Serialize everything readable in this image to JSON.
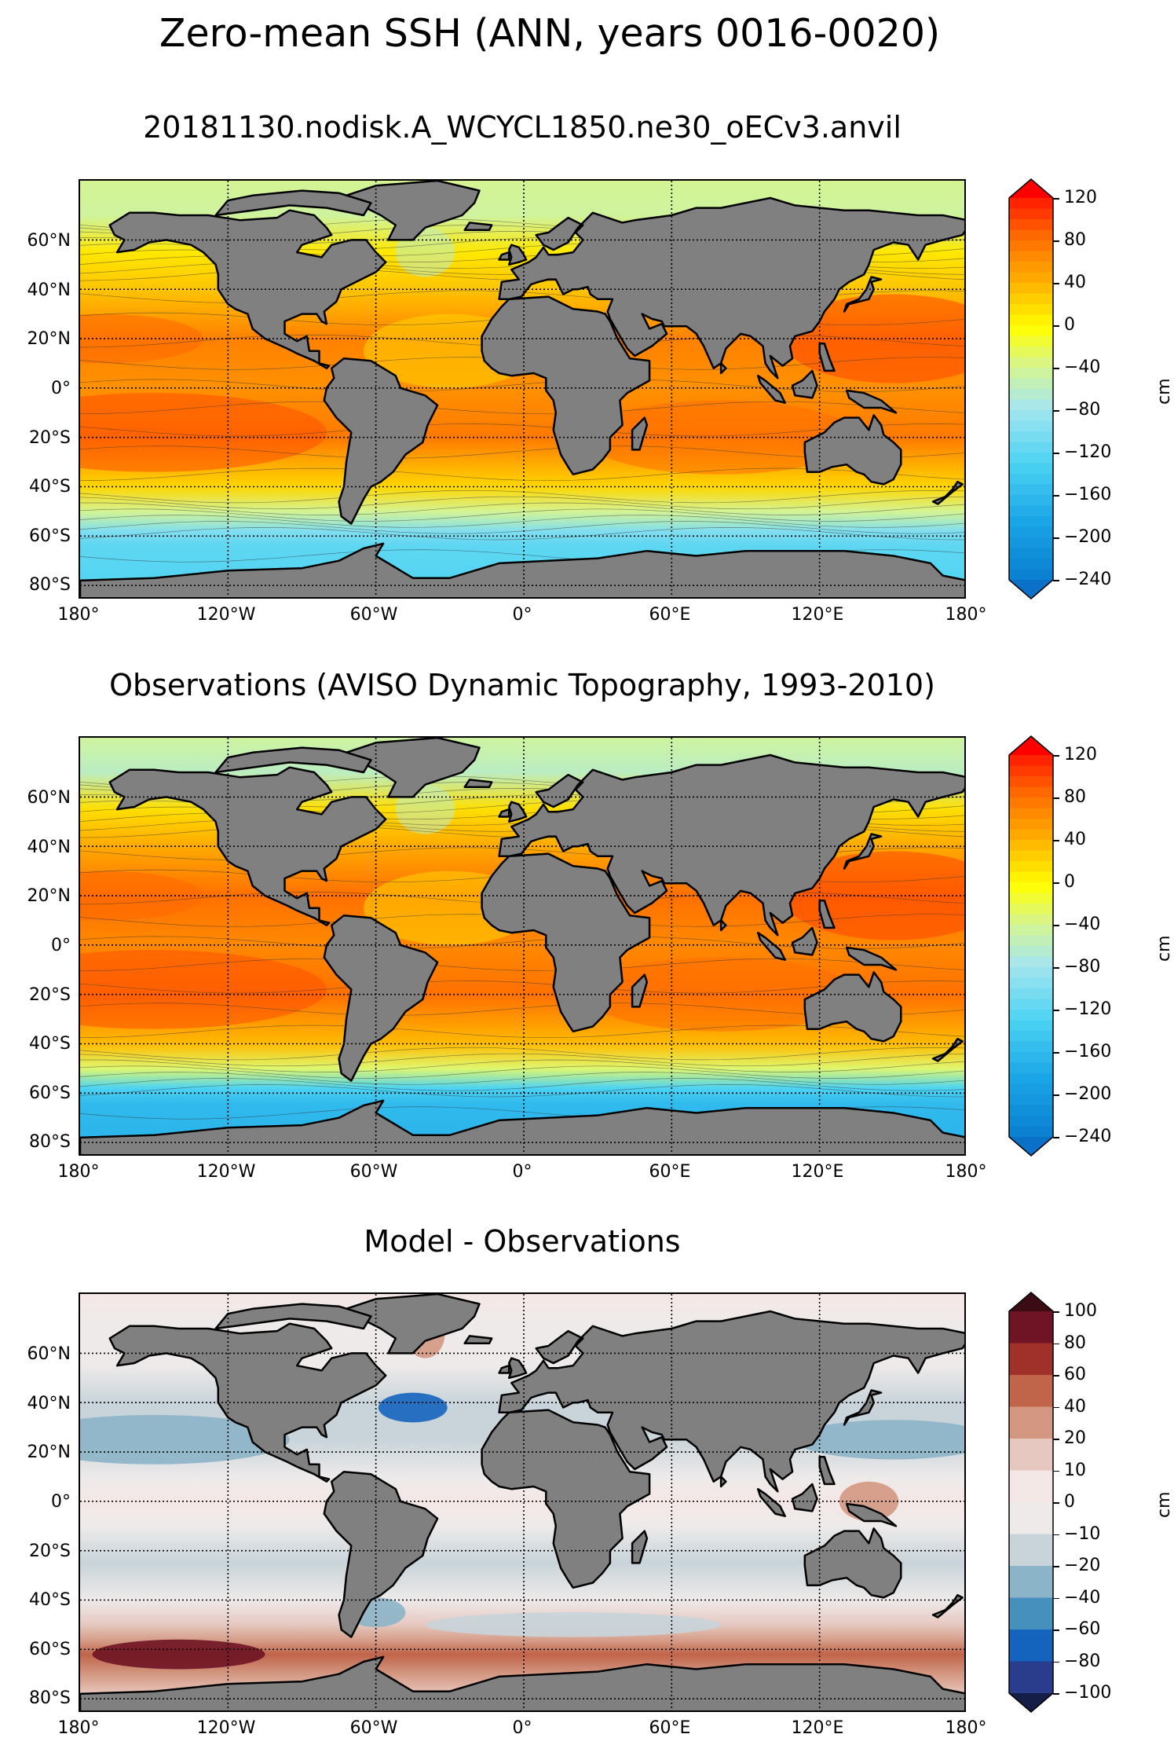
{
  "suptitle": "Zero-mean SSH (ANN, years 0016-0020)",
  "chart_data": [
    {
      "type": "heatmap",
      "title": "20181130.nodisk.A_WCYCL1850.ne30_oECv3.anvil",
      "lat_ticks": [
        "60°N",
        "40°N",
        "20°N",
        "0°",
        "20°S",
        "40°S",
        "60°S",
        "80°S"
      ],
      "lon_ticks": [
        "180°",
        "120°W",
        "60°W",
        "0°",
        "60°E",
        "120°E",
        "180°"
      ],
      "colorbar_ticks": [
        "120",
        "80",
        "40",
        "0",
        "−40",
        "−80",
        "−120",
        "−160",
        "−200",
        "−240"
      ],
      "colorbar_label": "cm",
      "clim": [
        -240,
        120
      ],
      "extend": "both",
      "cmap": "ssh",
      "land_color": "#808080"
    },
    {
      "type": "heatmap",
      "title": "Observations (AVISO Dynamic Topography, 1993-2010)",
      "lat_ticks": [
        "60°N",
        "40°N",
        "20°N",
        "0°",
        "20°S",
        "40°S",
        "60°S",
        "80°S"
      ],
      "lon_ticks": [
        "180°",
        "120°W",
        "60°W",
        "0°",
        "60°E",
        "120°E",
        "180°"
      ],
      "colorbar_ticks": [
        "120",
        "80",
        "40",
        "0",
        "−40",
        "−80",
        "−120",
        "−160",
        "−200",
        "−240"
      ],
      "colorbar_label": "cm",
      "clim": [
        -240,
        120
      ],
      "extend": "both",
      "cmap": "ssh",
      "land_color": "#808080"
    },
    {
      "type": "heatmap",
      "title": "Model - Observations",
      "lat_ticks": [
        "60°N",
        "40°N",
        "20°N",
        "0°",
        "20°S",
        "40°S",
        "60°S",
        "80°S"
      ],
      "lon_ticks": [
        "180°",
        "120°W",
        "60°W",
        "0°",
        "60°E",
        "120°E",
        "180°"
      ],
      "colorbar_ticks": [
        "100",
        "80",
        "60",
        "40",
        "20",
        "10",
        "0",
        "−10",
        "−20",
        "−40",
        "−60",
        "−80",
        "−100"
      ],
      "colorbar_label": "cm",
      "clim": [
        -100,
        100
      ],
      "extend": "both",
      "cmap": "diff",
      "land_color": "#808080"
    }
  ]
}
